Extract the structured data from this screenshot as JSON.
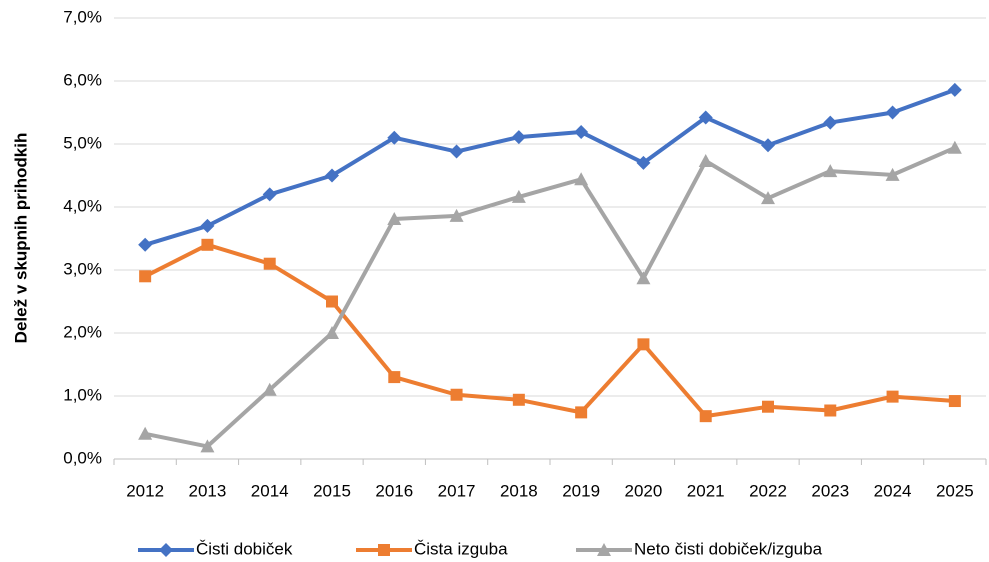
{
  "chart_data": {
    "type": "line",
    "y_label": "Delež v skupnih prihodkih",
    "categories": [
      "2012",
      "2013",
      "2014",
      "2015",
      "2016",
      "2017",
      "2018",
      "2019",
      "2020",
      "2021",
      "2022",
      "2023",
      "2024",
      "2025"
    ],
    "series": [
      {
        "name": "Čisti dobiček",
        "color": "#4472c4",
        "marker": "diamond",
        "values": [
          3.4,
          3.7,
          4.2,
          4.5,
          5.1,
          4.88,
          5.11,
          5.19,
          4.7,
          5.42,
          4.98,
          5.34,
          5.5,
          5.86
        ]
      },
      {
        "name": "Čista izguba",
        "color": "#ed7d31",
        "marker": "square",
        "values": [
          2.9,
          3.4,
          3.1,
          2.5,
          1.3,
          1.02,
          0.94,
          0.74,
          1.82,
          0.68,
          0.83,
          0.77,
          0.99,
          0.92
        ]
      },
      {
        "name": "Neto čisti dobiček/izguba",
        "color": "#a5a5a5",
        "marker": "triangle",
        "values": [
          0.4,
          0.2,
          1.1,
          2.0,
          3.81,
          3.86,
          4.16,
          4.44,
          2.87,
          4.73,
          4.14,
          4.57,
          4.51,
          4.94
        ]
      }
    ],
    "ylim": [
      0,
      7
    ],
    "yticks": [
      {
        "value": 0,
        "label": "0,0%"
      },
      {
        "value": 1,
        "label": "1,0%"
      },
      {
        "value": 2,
        "label": "2,0%"
      },
      {
        "value": 3,
        "label": "3,0%"
      },
      {
        "value": 4,
        "label": "4,0%"
      },
      {
        "value": 5,
        "label": "5,0%"
      },
      {
        "value": 6,
        "label": "6,0%"
      },
      {
        "value": 7,
        "label": "7,0%"
      }
    ],
    "grid": true,
    "legend": "bottom"
  }
}
